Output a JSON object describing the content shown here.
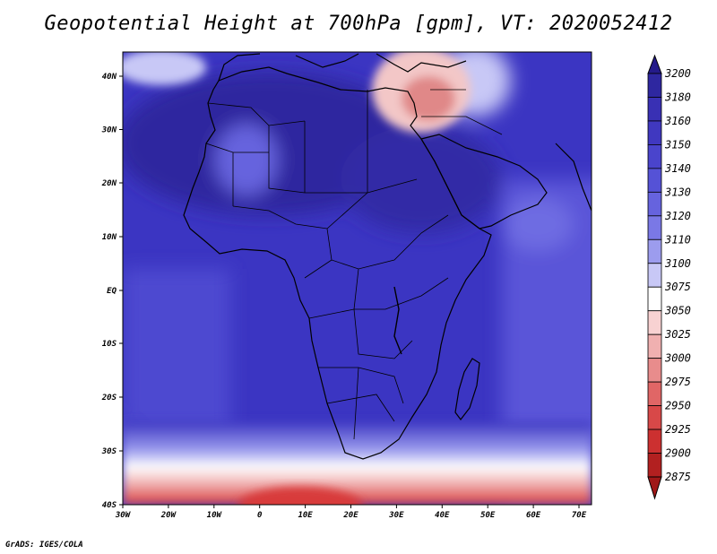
{
  "title": "Geopotential Height at 700hPa [gpm], VT: 2020052412",
  "credit": "GrADS: IGES/COLA",
  "map": {
    "lon_labels": [
      "30W",
      "20W",
      "10W",
      "0",
      "10E",
      "20E",
      "30E",
      "40E",
      "50E",
      "60E",
      "70E"
    ],
    "lat_labels": [
      "40N",
      "30N",
      "20N",
      "10N",
      "EQ",
      "10S",
      "20S",
      "30S",
      "40S"
    ]
  },
  "colorbar": {
    "levels": [
      "3200",
      "3180",
      "3160",
      "3150",
      "3140",
      "3130",
      "3120",
      "3110",
      "3100",
      "3075",
      "3050",
      "3025",
      "3000",
      "2975",
      "2950",
      "2925",
      "2900",
      "2875"
    ],
    "colors": [
      "#241a8a",
      "#2e27a0",
      "#3930b4",
      "#4038c0",
      "#4a44cc",
      "#5552d6",
      "#6663de",
      "#7a78e6",
      "#9c9cee",
      "#c8c8f6",
      "#ffffff",
      "#f8d2d2",
      "#f0b0b0",
      "#e88c8c",
      "#e06666",
      "#d84848",
      "#cc3030",
      "#b22020",
      "#a01818"
    ]
  },
  "field": {
    "base_color": "#3b35c2",
    "regions": [
      {
        "name": "ocean-east",
        "color": "#5a55d8"
      },
      {
        "name": "ocean-west",
        "color": "#4e48d0"
      },
      {
        "name": "sahara-core",
        "color": "#2f289f"
      },
      {
        "name": "sahara-east",
        "color": "#3129a6"
      },
      {
        "name": "mideast-high",
        "color": "#f3c7c7"
      },
      {
        "name": "south-low",
        "color": "#d83a3a"
      }
    ]
  }
}
